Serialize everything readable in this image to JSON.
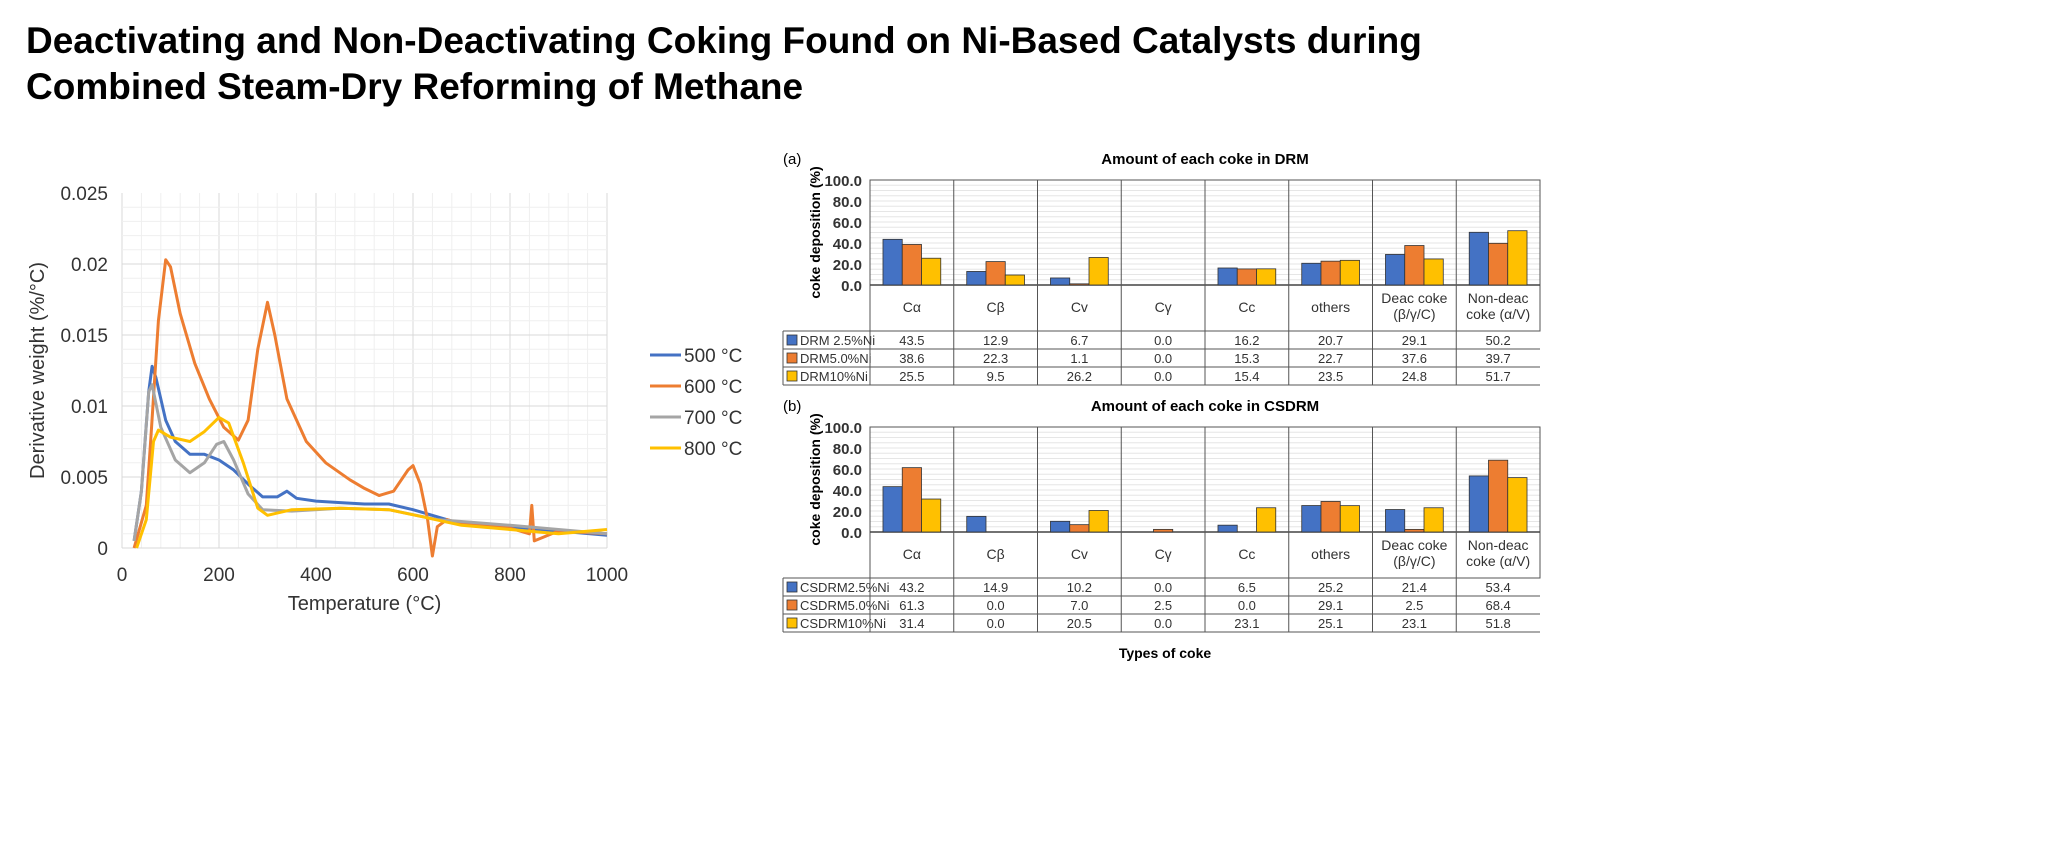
{
  "title_line1": "Deactivating and Non-Deactivating Coking Found on Ni-Based Catalysts during",
  "title_line2": "Combined Steam-Dry Reforming of Methane",
  "chart_data": [
    {
      "type": "line",
      "xlabel": "Temperature (°C)",
      "ylabel": "Derivative weight (%/°C)",
      "xlim": [
        0,
        1000
      ],
      "ylim": [
        0,
        0.025
      ],
      "xticks": [
        "0",
        "200",
        "400",
        "600",
        "800",
        "1000"
      ],
      "yticks": [
        "0",
        "0.005",
        "0.01",
        "0.015",
        "0.02",
        "0.025"
      ],
      "grid": true,
      "legend": "right",
      "series": [
        {
          "name": "500 °C",
          "color": "#4472c4",
          "points": [
            [
              25,
              0.0005
            ],
            [
              40,
              0.004
            ],
            [
              55,
              0.011
            ],
            [
              62,
              0.0128
            ],
            [
              70,
              0.012
            ],
            [
              90,
              0.009
            ],
            [
              110,
              0.0075
            ],
            [
              140,
              0.0066
            ],
            [
              170,
              0.0066
            ],
            [
              200,
              0.0062
            ],
            [
              230,
              0.0055
            ],
            [
              260,
              0.0045
            ],
            [
              290,
              0.0036
            ],
            [
              320,
              0.0036
            ],
            [
              340,
              0.004
            ],
            [
              360,
              0.0035
            ],
            [
              400,
              0.0033
            ],
            [
              450,
              0.0032
            ],
            [
              500,
              0.0031
            ],
            [
              550,
              0.0031
            ],
            [
              600,
              0.0027
            ],
            [
              650,
              0.0022
            ],
            [
              700,
              0.0017
            ],
            [
              800,
              0.0015
            ],
            [
              900,
              0.0012
            ],
            [
              1000,
              0.0009
            ]
          ]
        },
        {
          "name": "600 °C",
          "color": "#ed7d31",
          "points": [
            [
              25,
              0
            ],
            [
              50,
              0.003
            ],
            [
              60,
              0.008
            ],
            [
              75,
              0.016
            ],
            [
              90,
              0.0203
            ],
            [
              100,
              0.0198
            ],
            [
              120,
              0.0165
            ],
            [
              150,
              0.013
            ],
            [
              180,
              0.0105
            ],
            [
              210,
              0.0085
            ],
            [
              240,
              0.0076
            ],
            [
              260,
              0.009
            ],
            [
              280,
              0.014
            ],
            [
              300,
              0.0173
            ],
            [
              315,
              0.015
            ],
            [
              340,
              0.0105
            ],
            [
              380,
              0.0075
            ],
            [
              420,
              0.006
            ],
            [
              470,
              0.0048
            ],
            [
              500,
              0.0042
            ],
            [
              530,
              0.0037
            ],
            [
              560,
              0.004
            ],
            [
              590,
              0.0055
            ],
            [
              600,
              0.0058
            ],
            [
              615,
              0.0045
            ],
            [
              630,
              0.002
            ],
            [
              640,
              -0.002
            ],
            [
              650,
              0.0015
            ],
            [
              670,
              0.002
            ],
            [
              700,
              0.0017
            ],
            [
              800,
              0.0014
            ],
            [
              840,
              0.001
            ],
            [
              845,
              0.003
            ],
            [
              850,
              0.0005
            ],
            [
              900,
              0.0012
            ],
            [
              1000,
              0.001
            ]
          ]
        },
        {
          "name": "700 °C",
          "color": "#a5a5a5",
          "points": [
            [
              25,
              0.0005
            ],
            [
              40,
              0.004
            ],
            [
              55,
              0.011
            ],
            [
              62,
              0.0115
            ],
            [
              80,
              0.0085
            ],
            [
              110,
              0.0062
            ],
            [
              140,
              0.0053
            ],
            [
              170,
              0.006
            ],
            [
              195,
              0.0073
            ],
            [
              210,
              0.0075
            ],
            [
              230,
              0.0062
            ],
            [
              260,
              0.0038
            ],
            [
              290,
              0.0027
            ],
            [
              350,
              0.0026
            ],
            [
              450,
              0.0028
            ],
            [
              550,
              0.0027
            ],
            [
              650,
              0.002
            ],
            [
              800,
              0.0016
            ],
            [
              1000,
              0.001
            ]
          ]
        },
        {
          "name": "800 °C",
          "color": "#ffc000",
          "points": [
            [
              30,
              0
            ],
            [
              50,
              0.002
            ],
            [
              65,
              0.0075
            ],
            [
              75,
              0.0083
            ],
            [
              100,
              0.0078
            ],
            [
              140,
              0.0075
            ],
            [
              170,
              0.0082
            ],
            [
              200,
              0.0092
            ],
            [
              220,
              0.0088
            ],
            [
              250,
              0.006
            ],
            [
              280,
              0.0028
            ],
            [
              300,
              0.0023
            ],
            [
              350,
              0.0027
            ],
            [
              450,
              0.0028
            ],
            [
              550,
              0.0027
            ],
            [
              620,
              0.0022
            ],
            [
              700,
              0.0016
            ],
            [
              800,
              0.0013
            ],
            [
              900,
              0.001
            ],
            [
              1000,
              0.0013
            ]
          ]
        }
      ]
    },
    {
      "type": "bar",
      "panel": "(a)",
      "title": "Amount of each coke in DRM",
      "ylabel": "coke deposition (%)",
      "ylim": [
        0,
        100
      ],
      "yticks": [
        "0.0",
        "20.0",
        "40.0",
        "60.0",
        "80.0",
        "100.0"
      ],
      "categories": [
        "Cα",
        "Cβ",
        "Cv",
        "Cγ",
        "Cc",
        "others",
        "Deac coke\n(β/γ/C)",
        "Non-deac\ncoke (α/V)"
      ],
      "series": [
        {
          "name": "DRM 2.5%Ni",
          "color": "#4472c4",
          "values": [
            43.5,
            12.9,
            6.7,
            0.0,
            16.2,
            20.7,
            29.1,
            50.2
          ],
          "labels": [
            "43.5",
            "12.9",
            "6.7",
            "0.0",
            "16.2",
            "20.7",
            "29.1",
            "50.2"
          ]
        },
        {
          "name": "DRM5.0%Ni",
          "color": "#ed7d31",
          "values": [
            38.6,
            22.3,
            1.1,
            0.0,
            15.3,
            22.7,
            37.6,
            39.7
          ],
          "labels": [
            "38.6",
            "22.3",
            "1.1",
            "0.0",
            "15.3",
            "22.7",
            "37.6",
            "39.7"
          ]
        },
        {
          "name": "DRM10%Ni",
          "color": "#ffc000",
          "values": [
            25.5,
            9.5,
            26.2,
            0.0,
            15.4,
            23.5,
            24.8,
            51.7
          ],
          "labels": [
            "25.5",
            "9.5",
            "26.2",
            "0.0",
            "15.4",
            "23.5",
            "24.8",
            "51.7"
          ]
        }
      ]
    },
    {
      "type": "bar",
      "panel": "(b)",
      "title": "Amount of each coke in CSDRM",
      "ylabel": "coke deposition (%)",
      "xlabel": "Types of coke",
      "ylim": [
        0,
        100
      ],
      "yticks": [
        "0.0",
        "20.0",
        "40.0",
        "60.0",
        "80.0",
        "100.0"
      ],
      "categories": [
        "Cα",
        "Cβ",
        "Cv",
        "Cγ",
        "Cc",
        "others",
        "Deac coke\n(β/γ/C)",
        "Non-deac\ncoke (α/V)"
      ],
      "series": [
        {
          "name": "CSDRM2.5%Ni",
          "color": "#4472c4",
          "values": [
            43.2,
            14.9,
            10.2,
            0.0,
            6.5,
            25.2,
            21.4,
            53.4
          ],
          "labels": [
            "43.2",
            "14.9",
            "10.2",
            "0.0",
            "6.5",
            "25.2",
            "21.4",
            "53.4"
          ]
        },
        {
          "name": "CSDRM5.0%Ni",
          "color": "#ed7d31",
          "values": [
            61.3,
            0.0,
            7.0,
            2.5,
            0.0,
            29.1,
            2.5,
            68.4
          ],
          "labels": [
            "61.3",
            "0.0",
            "7.0",
            "2.5",
            "0.0",
            "29.1",
            "2.5",
            "68.4"
          ]
        },
        {
          "name": "CSDRM10%Ni",
          "color": "#ffc000",
          "values": [
            31.4,
            0.0,
            20.5,
            0.0,
            23.1,
            25.1,
            23.1,
            51.8
          ],
          "labels": [
            "31.4",
            "0.0",
            "20.5",
            "0.0",
            "23.1",
            "25.1",
            "23.1",
            "51.8"
          ]
        }
      ]
    }
  ]
}
